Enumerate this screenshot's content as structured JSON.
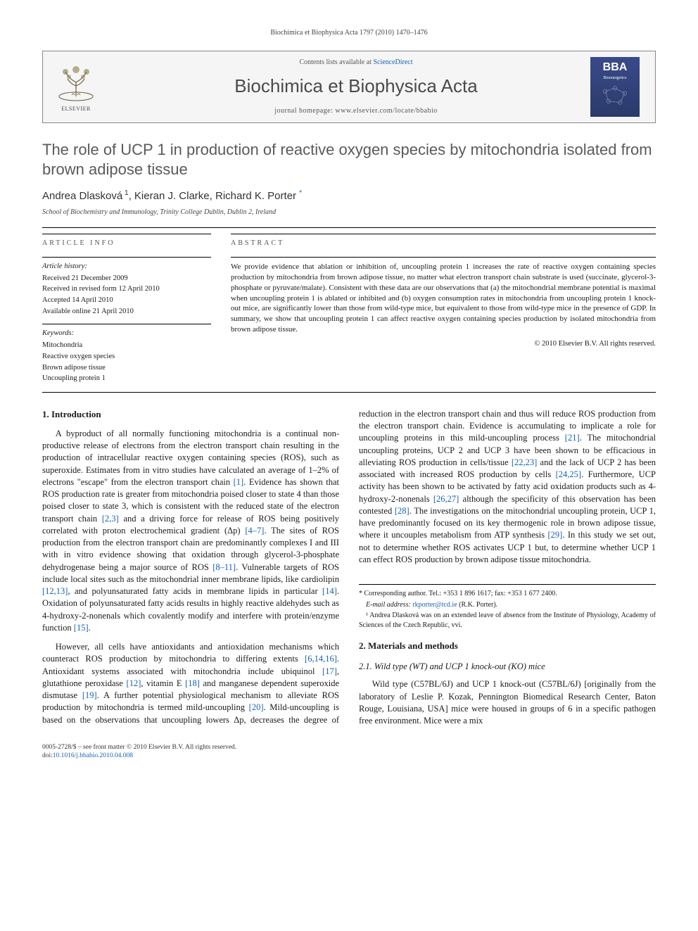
{
  "running_header": "Biochimica et Biophysica Acta 1797 (2010) 1470–1476",
  "masthead": {
    "contents_prefix": "Contents lists available at ",
    "contents_link": "ScienceDirect",
    "journal": "Biochimica et Biophysica Acta",
    "homepage_prefix": "journal homepage: ",
    "homepage_url": "www.elsevier.com/locate/bbabio",
    "elsevier_label": "ELSEVIER",
    "bba_label": "BBA",
    "bba_sub": "Bioenergetics"
  },
  "title": "The role of UCP 1 in production of reactive oxygen species by mitochondria isolated from brown adipose tissue",
  "authors_html": "Andrea Dlasková <sup>1</sup>, Kieran J. Clarke, Richard K. Porter <a>*</a>",
  "affiliation": "School of Biochemistry and Immunology, Trinity College Dublin, Dublin 2, Ireland",
  "labels": {
    "article_info": "ARTICLE INFO",
    "abstract": "ABSTRACT",
    "history": "Article history:",
    "keywords": "Keywords:"
  },
  "history": [
    "Received 21 December 2009",
    "Received in revised form 12 April 2010",
    "Accepted 14 April 2010",
    "Available online 21 April 2010"
  ],
  "keywords": [
    "Mitochondria",
    "Reactive oxygen species",
    "Brown adipose tissue",
    "Uncoupling protein 1"
  ],
  "abstract": "We provide evidence that ablation or inhibition of, uncoupling protein 1 increases the rate of reactive oxygen containing species production by mitochondria from brown adipose tissue, no matter what electron transport chain substrate is used (succinate, glycerol-3-phosphate or pyruvate/malate). Consistent with these data are our observations that (a) the mitochondrial membrane potential is maximal when uncoupling protein 1 is ablated or inhibited and (b) oxygen consumption rates in mitochondria from uncoupling protein 1 knock-out mice, are significantly lower than those from wild-type mice, but equivalent to those from wild-type mice in the presence of GDP. In summary, we show that uncoupling protein 1 can affect reactive oxygen containing species production by isolated mitochondria from brown adipose tissue.",
  "copyright": "© 2010 Elsevier B.V. All rights reserved.",
  "sections": {
    "intro_heading": "1. Introduction",
    "intro_p1": "A byproduct of all normally functioning mitochondria is a continual non-productive release of electrons from the electron transport chain resulting in the production of intracellular reactive oxygen containing species (ROS), such as superoxide. Estimates from in vitro studies have calculated an average of 1–2% of electrons \"escape\" from the electron transport chain [1]. Evidence has shown that ROS production rate is greater from mitochondria poised closer to state 4 than those poised closer to state 3, which is consistent with the reduced state of the electron transport chain [2,3] and a driving force for release of ROS being positively correlated with proton electrochemical gradient (Δp) [4–7]. The sites of ROS production from the electron transport chain are predominantly complexes I and III with in vitro evidence showing that oxidation through glycerol-3-phosphate dehydrogenase being a major source of ROS [8–11]. Vulnerable targets of ROS include local sites such as the mitochondrial inner membrane lipids, like cardiolipin [12,13], and polyunsaturated fatty acids in membrane lipids in particular [14]. Oxidation of polyunsaturated fatty acids results in highly reactive aldehydes such as 4-hydroxy-2-nonenals which covalently modify and interfere with protein/enzyme function [15].",
    "intro_p2": "However, all cells have antioxidants and antioxidation mechanisms which counteract ROS production by mitochondria to differing extents [6,14,16]. Antioxidant systems associated with mitochondria include ubiquinol [17], glutathione peroxidase [12], vitamin E [18] and manganese dependent superoxide dismutase [19]. A further potential physiological mechanism to alleviate ROS production by mitochondria is termed mild-uncoupling [20]. Mild-uncoupling is based on the observations that uncoupling lowers Δp, decreases the degree of reduction in the electron transport chain and thus will reduce ROS production from the electron transport chain. Evidence is accumulating to implicate a role for uncoupling proteins in this mild-uncoupling process [21]. The mitochondrial uncoupling proteins, UCP 2 and UCP 3 have been shown to be efficacious in alleviating ROS production in cells/tissue [22,23] and the lack of UCP 2 has been associated with increased ROS production by cells [24,25]. Furthermore, UCP activity has been shown to be activated by fatty acid oxidation products such as 4-hydroxy-2-nonenals [26,27] although the specificity of this observation has been contested [28]. The investigations on the mitochondrial uncoupling protein, UCP 1, have predominantly focused on its key thermogenic role in brown adipose tissue, where it uncouples metabolism from ATP synthesis [29]. In this study we set out, not to determine whether ROS activates UCP 1 but, to determine whether UCP 1 can effect ROS production by brown adipose tissue mitochondria.",
    "methods_heading": "2. Materials and methods",
    "methods_sub": "2.1. Wild type (WT) and UCP 1 knock-out (KO) mice",
    "methods_p1": "Wild type (C57BL/6J) and UCP 1 knock-out (C57BL/6J) [originally from the laboratory of Leslie P. Kozak, Pennington Biomedical Research Center, Baton Rouge, Louisiana, USA] mice were housed in groups of 6 in a specific pathogen free environment. Mice were a mix"
  },
  "footnotes": {
    "corr": "* Corresponding author. Tel.: +353 1 896 1617; fax: +353 1 677 2400.",
    "email_label": "E-mail address: ",
    "email": "rkporter@tcd.ie",
    "email_person": " (R.K. Porter).",
    "note1": "¹ Andrea Dlasková was on an extended leave of absence from the Institute of Physiology, Academy of Sciences of the Czech Republic, vvi."
  },
  "footer": {
    "line1": "0005-2728/$ – see front matter © 2010 Elsevier B.V. All rights reserved.",
    "doi_prefix": "doi:",
    "doi": "10.1016/j.bbabio.2010.04.008"
  },
  "ref_links": [
    "[1]",
    "[2,3]",
    "[4–7]",
    "[8–11]",
    "[12,13]",
    "[14]",
    "[15]",
    "[6,14,16]",
    "[17]",
    "[12]",
    "[18]",
    "[19]",
    "[20]",
    "[21]",
    "[22,23]",
    "[24,25]",
    "[26,27]",
    "[28]",
    "[29]"
  ],
  "colors": {
    "link": "#1660b2",
    "title_gray": "#5a5a5a",
    "bba_bg_top": "#3a4a8a",
    "bba_bg_bottom": "#2a3a6a"
  }
}
